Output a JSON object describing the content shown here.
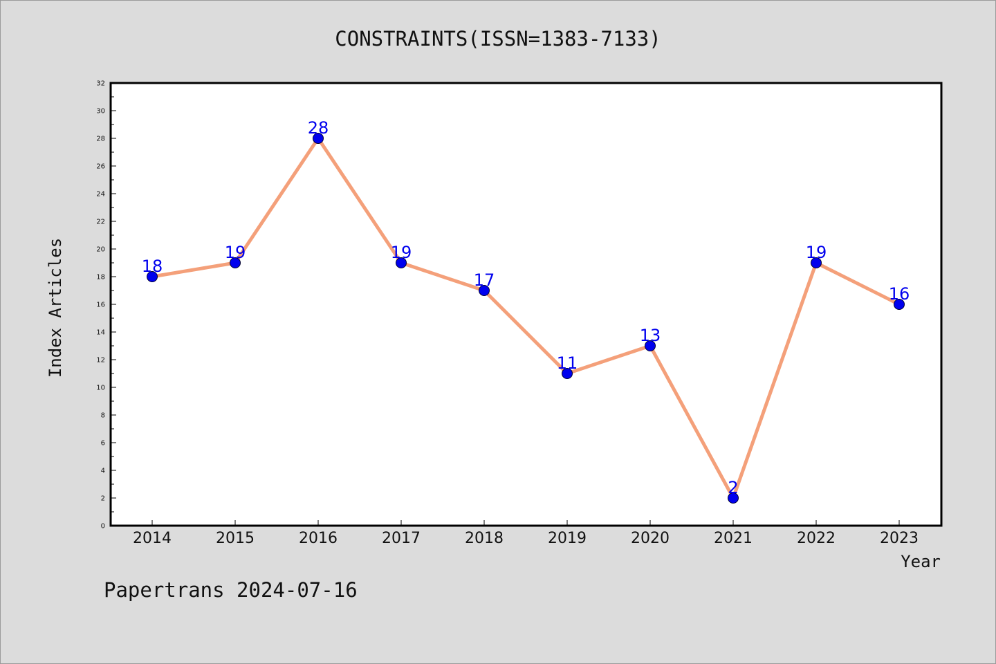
{
  "chart_data": {
    "type": "line",
    "title": "CONSTRAINTS(ISSN=1383-7133)",
    "xlabel": "Year",
    "ylabel": "Index Articles",
    "categories": [
      "2014",
      "2015",
      "2016",
      "2017",
      "2018",
      "2019",
      "2020",
      "2021",
      "2022",
      "2023"
    ],
    "series": [
      {
        "values": [
          18,
          19,
          28,
          19,
          17,
          11,
          13,
          2,
          19,
          16
        ]
      }
    ],
    "ylim": [
      0,
      32
    ],
    "yticks": [
      "0",
      "2",
      "4",
      "6",
      "8",
      "10",
      "12",
      "14",
      "16",
      "18",
      "20",
      "22",
      "24",
      "26",
      "28",
      "30",
      "32"
    ],
    "data_labels": true,
    "grid": false,
    "legend": "none",
    "colors": {
      "line": "#f4a07a",
      "marker": "#0000ee",
      "data_label": "#0000ee",
      "plot_background": "#ffffff",
      "figure_background": "#dcdcdc"
    }
  },
  "footer": {
    "watermark": "Papertrans 2024-07-16"
  }
}
